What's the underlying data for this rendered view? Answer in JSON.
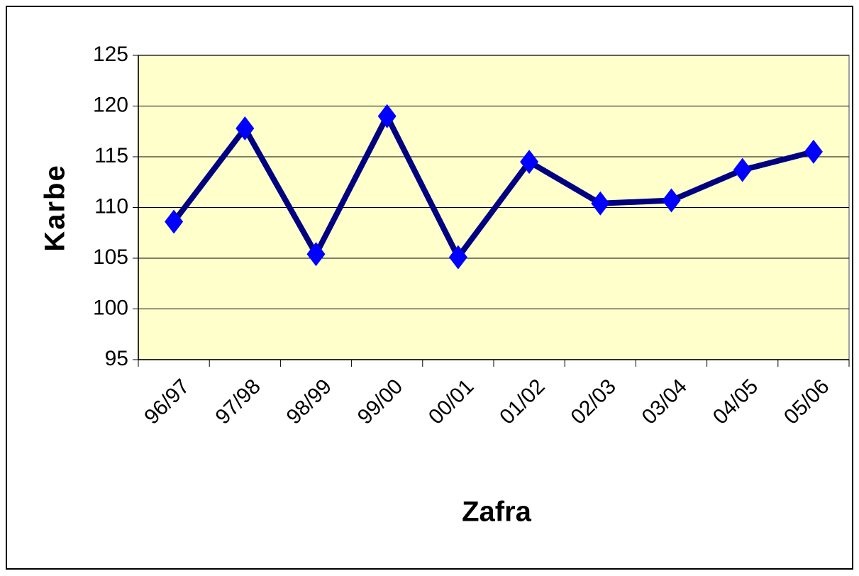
{
  "chart_data": {
    "type": "line",
    "x_label": "Zafra",
    "y_label": "Karbe",
    "categories": [
      "96/97",
      "97/98",
      "98/99",
      "99/00",
      "00/01",
      "01/02",
      "02/03",
      "03/04",
      "04/05",
      "05/06"
    ],
    "series": [
      {
        "name": "Karbe",
        "line_color": "#000080",
        "marker_color": "#0000ff",
        "values": [
          108.6,
          117.8,
          105.4,
          119,
          105.1,
          114.5,
          110.4,
          110.7,
          113.7,
          115.5
        ]
      }
    ],
    "ylim": [
      95,
      125
    ],
    "yticks": [
      95,
      100,
      105,
      110,
      115,
      120,
      125
    ],
    "grid": true,
    "plot_background": "#ffffcc"
  }
}
